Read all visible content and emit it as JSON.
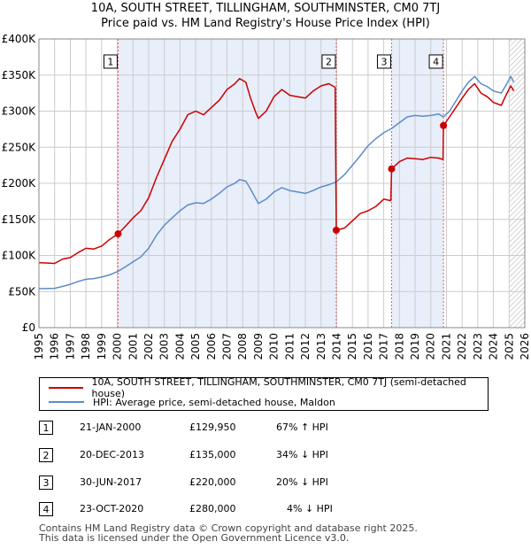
{
  "title": "10A, SOUTH STREET, TILLINGHAM, SOUTHMINSTER, CM0 7TJ",
  "subtitle": "Price paid vs. HM Land Registry's House Price Index (HPI)",
  "legend": {
    "red_label": "10A, SOUTH STREET, TILLINGHAM, SOUTHMINSTER, CM0 7TJ (semi-detached house)",
    "blue_label": "HPI: Average price, semi-detached house, Maldon"
  },
  "sales": [
    {
      "num": "1",
      "date": "21-JAN-2000",
      "price": "£129,950",
      "hpi": "67% ↑ HPI"
    },
    {
      "num": "2",
      "date": "20-DEC-2013",
      "price": "£135,000",
      "hpi": "34% ↓ HPI"
    },
    {
      "num": "3",
      "date": "30-JUN-2017",
      "price": "£220,000",
      "hpi": "20% ↓ HPI"
    },
    {
      "num": "4",
      "date": "23-OCT-2020",
      "price": "£280,000",
      "hpi": "4% ↓ HPI"
    }
  ],
  "footer": {
    "line1": "Contains HM Land Registry data © Crown copyright and database right 2025.",
    "line2": "This data is licensed under the Open Government Licence v3.0."
  },
  "colors": {
    "red": "#cc0000",
    "blue": "#5b8cc8",
    "shade": "#e8eefa",
    "grid": "#cccccc"
  },
  "chart_data": {
    "type": "line",
    "title": "10A, SOUTH STREET, TILLINGHAM, SOUTHMINSTER, CM0 7TJ",
    "subtitle": "Price paid vs. HM Land Registry's House Price Index (HPI)",
    "xlabel": "",
    "ylabel": "",
    "xlim": [
      1995,
      2026
    ],
    "ylim": [
      0,
      400000
    ],
    "x_ticks": [
      "1995",
      "1996",
      "1997",
      "1998",
      "1999",
      "2000",
      "2001",
      "2002",
      "2003",
      "2004",
      "2005",
      "2006",
      "2007",
      "2008",
      "2009",
      "2010",
      "2011",
      "2012",
      "2013",
      "2014",
      "2015",
      "2016",
      "2017",
      "2018",
      "2019",
      "2020",
      "2021",
      "2022",
      "2023",
      "2024",
      "2025",
      "2026"
    ],
    "y_ticks": [
      {
        "v": 0,
        "label": "£0"
      },
      {
        "v": 50000,
        "label": "£50K"
      },
      {
        "v": 100000,
        "label": "£100K"
      },
      {
        "v": 150000,
        "label": "£150K"
      },
      {
        "v": 200000,
        "label": "£200K"
      },
      {
        "v": 250000,
        "label": "£250K"
      },
      {
        "v": 300000,
        "label": "£300K"
      },
      {
        "v": 350000,
        "label": "£350K"
      },
      {
        "v": 400000,
        "label": "£400K"
      }
    ],
    "shaded_ranges": [
      [
        2000.05,
        2013.97
      ],
      [
        2017.5,
        2020.81
      ]
    ],
    "future_from": 2025.0,
    "series": [
      {
        "name": "10A, SOUTH STREET, TILLINGHAM, SOUTHMINSTER, CM0 7TJ (semi-detached house)",
        "color": "red",
        "points": [
          [
            1995.0,
            90000
          ],
          [
            1996.0,
            89000
          ],
          [
            1996.5,
            95000
          ],
          [
            1997.0,
            97000
          ],
          [
            1997.5,
            104000
          ],
          [
            1998.0,
            110000
          ],
          [
            1998.5,
            109000
          ],
          [
            1999.0,
            113000
          ],
          [
            1999.5,
            122000
          ],
          [
            2000.05,
            129950
          ],
          [
            2000.5,
            140000
          ],
          [
            2001.0,
            152000
          ],
          [
            2001.5,
            162000
          ],
          [
            2002.0,
            180000
          ],
          [
            2002.5,
            208000
          ],
          [
            2003.0,
            233000
          ],
          [
            2003.5,
            258000
          ],
          [
            2004.0,
            275000
          ],
          [
            2004.5,
            295000
          ],
          [
            2005.0,
            300000
          ],
          [
            2005.5,
            295000
          ],
          [
            2006.0,
            305000
          ],
          [
            2006.5,
            315000
          ],
          [
            2007.0,
            330000
          ],
          [
            2007.5,
            338000
          ],
          [
            2007.8,
            345000
          ],
          [
            2008.2,
            340000
          ],
          [
            2008.5,
            318000
          ],
          [
            2008.8,
            300000
          ],
          [
            2009.0,
            290000
          ],
          [
            2009.5,
            300000
          ],
          [
            2010.0,
            320000
          ],
          [
            2010.5,
            330000
          ],
          [
            2011.0,
            322000
          ],
          [
            2011.5,
            320000
          ],
          [
            2012.0,
            318000
          ],
          [
            2012.5,
            328000
          ],
          [
            2013.0,
            335000
          ],
          [
            2013.5,
            338000
          ],
          [
            2013.9,
            333000
          ],
          [
            2013.97,
            135000
          ],
          [
            2014.5,
            138000
          ],
          [
            2015.0,
            148000
          ],
          [
            2015.5,
            158000
          ],
          [
            2016.0,
            162000
          ],
          [
            2016.5,
            168000
          ],
          [
            2017.0,
            178000
          ],
          [
            2017.45,
            176000
          ],
          [
            2017.5,
            220000
          ],
          [
            2018.0,
            230000
          ],
          [
            2018.5,
            235000
          ],
          [
            2019.0,
            234000
          ],
          [
            2019.5,
            233000
          ],
          [
            2020.0,
            236000
          ],
          [
            2020.5,
            235000
          ],
          [
            2020.78,
            233000
          ],
          [
            2020.81,
            280000
          ],
          [
            2021.2,
            292000
          ],
          [
            2021.6,
            305000
          ],
          [
            2022.0,
            318000
          ],
          [
            2022.4,
            330000
          ],
          [
            2022.8,
            338000
          ],
          [
            2023.2,
            325000
          ],
          [
            2023.6,
            320000
          ],
          [
            2024.0,
            312000
          ],
          [
            2024.5,
            308000
          ],
          [
            2024.8,
            322000
          ],
          [
            2025.1,
            335000
          ],
          [
            2025.3,
            328000
          ]
        ]
      },
      {
        "name": "HPI: Average price, semi-detached house, Maldon",
        "color": "blue",
        "points": [
          [
            1995.0,
            54000
          ],
          [
            1996.0,
            54500
          ],
          [
            1996.5,
            57000
          ],
          [
            1997.0,
            60000
          ],
          [
            1997.5,
            64000
          ],
          [
            1998.0,
            67000
          ],
          [
            1998.5,
            68000
          ],
          [
            1999.0,
            70000
          ],
          [
            1999.5,
            73000
          ],
          [
            2000.05,
            78000
          ],
          [
            2000.5,
            84000
          ],
          [
            2001.0,
            91000
          ],
          [
            2001.5,
            98000
          ],
          [
            2002.0,
            110000
          ],
          [
            2002.5,
            128000
          ],
          [
            2003.0,
            142000
          ],
          [
            2003.5,
            152000
          ],
          [
            2004.0,
            162000
          ],
          [
            2004.5,
            170000
          ],
          [
            2005.0,
            173000
          ],
          [
            2005.5,
            172000
          ],
          [
            2006.0,
            178000
          ],
          [
            2006.5,
            186000
          ],
          [
            2007.0,
            195000
          ],
          [
            2007.5,
            200000
          ],
          [
            2007.8,
            205000
          ],
          [
            2008.2,
            203000
          ],
          [
            2008.5,
            192000
          ],
          [
            2008.8,
            180000
          ],
          [
            2009.0,
            172000
          ],
          [
            2009.5,
            178000
          ],
          [
            2010.0,
            188000
          ],
          [
            2010.5,
            194000
          ],
          [
            2011.0,
            190000
          ],
          [
            2011.5,
            188000
          ],
          [
            2012.0,
            186000
          ],
          [
            2012.5,
            190000
          ],
          [
            2013.0,
            195000
          ],
          [
            2013.5,
            198000
          ],
          [
            2013.97,
            202000
          ],
          [
            2014.5,
            212000
          ],
          [
            2015.0,
            225000
          ],
          [
            2015.5,
            238000
          ],
          [
            2016.0,
            252000
          ],
          [
            2016.5,
            262000
          ],
          [
            2017.0,
            270000
          ],
          [
            2017.5,
            276000
          ],
          [
            2018.0,
            284000
          ],
          [
            2018.5,
            292000
          ],
          [
            2019.0,
            294000
          ],
          [
            2019.5,
            293000
          ],
          [
            2020.0,
            294000
          ],
          [
            2020.5,
            296000
          ],
          [
            2020.81,
            292000
          ],
          [
            2021.2,
            300000
          ],
          [
            2021.6,
            314000
          ],
          [
            2022.0,
            328000
          ],
          [
            2022.4,
            340000
          ],
          [
            2022.8,
            348000
          ],
          [
            2023.2,
            338000
          ],
          [
            2023.6,
            334000
          ],
          [
            2024.0,
            328000
          ],
          [
            2024.5,
            325000
          ],
          [
            2024.8,
            336000
          ],
          [
            2025.1,
            348000
          ],
          [
            2025.3,
            340000
          ]
        ]
      }
    ],
    "sale_points": [
      {
        "label": "1",
        "x": 2000.05,
        "y": 129950
      },
      {
        "label": "2",
        "x": 2013.97,
        "y": 135000
      },
      {
        "label": "3",
        "x": 2017.5,
        "y": 220000
      },
      {
        "label": "4",
        "x": 2020.81,
        "y": 280000
      }
    ]
  }
}
